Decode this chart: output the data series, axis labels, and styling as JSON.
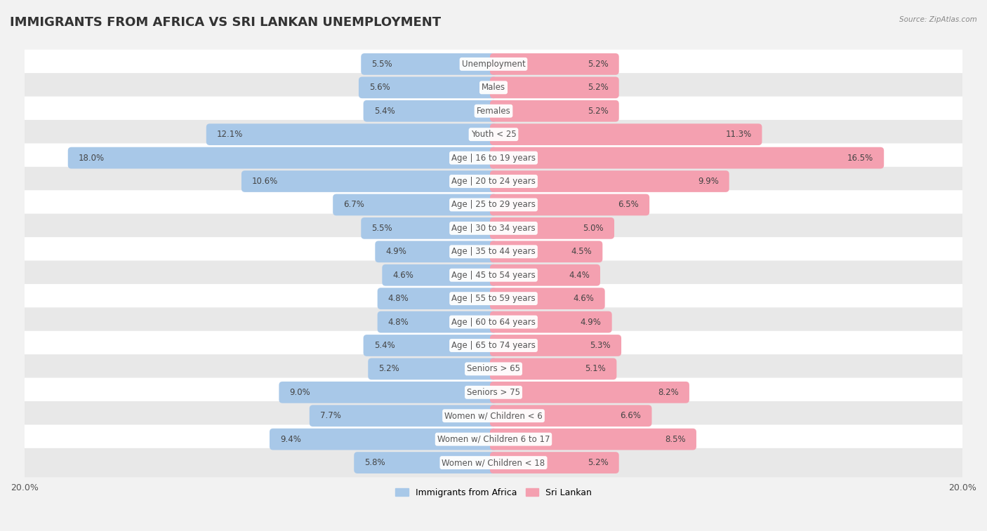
{
  "title": "IMMIGRANTS FROM AFRICA VS SRI LANKAN UNEMPLOYMENT",
  "source": "Source: ZipAtlas.com",
  "categories": [
    "Unemployment",
    "Males",
    "Females",
    "Youth < 25",
    "Age | 16 to 19 years",
    "Age | 20 to 24 years",
    "Age | 25 to 29 years",
    "Age | 30 to 34 years",
    "Age | 35 to 44 years",
    "Age | 45 to 54 years",
    "Age | 55 to 59 years",
    "Age | 60 to 64 years",
    "Age | 65 to 74 years",
    "Seniors > 65",
    "Seniors > 75",
    "Women w/ Children < 6",
    "Women w/ Children 6 to 17",
    "Women w/ Children < 18"
  ],
  "africa_values": [
    5.5,
    5.6,
    5.4,
    12.1,
    18.0,
    10.6,
    6.7,
    5.5,
    4.9,
    4.6,
    4.8,
    4.8,
    5.4,
    5.2,
    9.0,
    7.7,
    9.4,
    5.8
  ],
  "srilanka_values": [
    5.2,
    5.2,
    5.2,
    11.3,
    16.5,
    9.9,
    6.5,
    5.0,
    4.5,
    4.4,
    4.6,
    4.9,
    5.3,
    5.1,
    8.2,
    6.6,
    8.5,
    5.2
  ],
  "africa_color": "#a8c8e8",
  "srilanka_color": "#f4a0b0",
  "africa_label": "Immigrants from Africa",
  "srilanka_label": "Sri Lankan",
  "axis_max": 20.0,
  "bg_color": "#f2f2f2",
  "row_color_even": "#ffffff",
  "row_color_odd": "#e8e8e8",
  "title_fontsize": 13,
  "cat_fontsize": 8.5,
  "val_fontsize": 8.5,
  "legend_fontsize": 9
}
